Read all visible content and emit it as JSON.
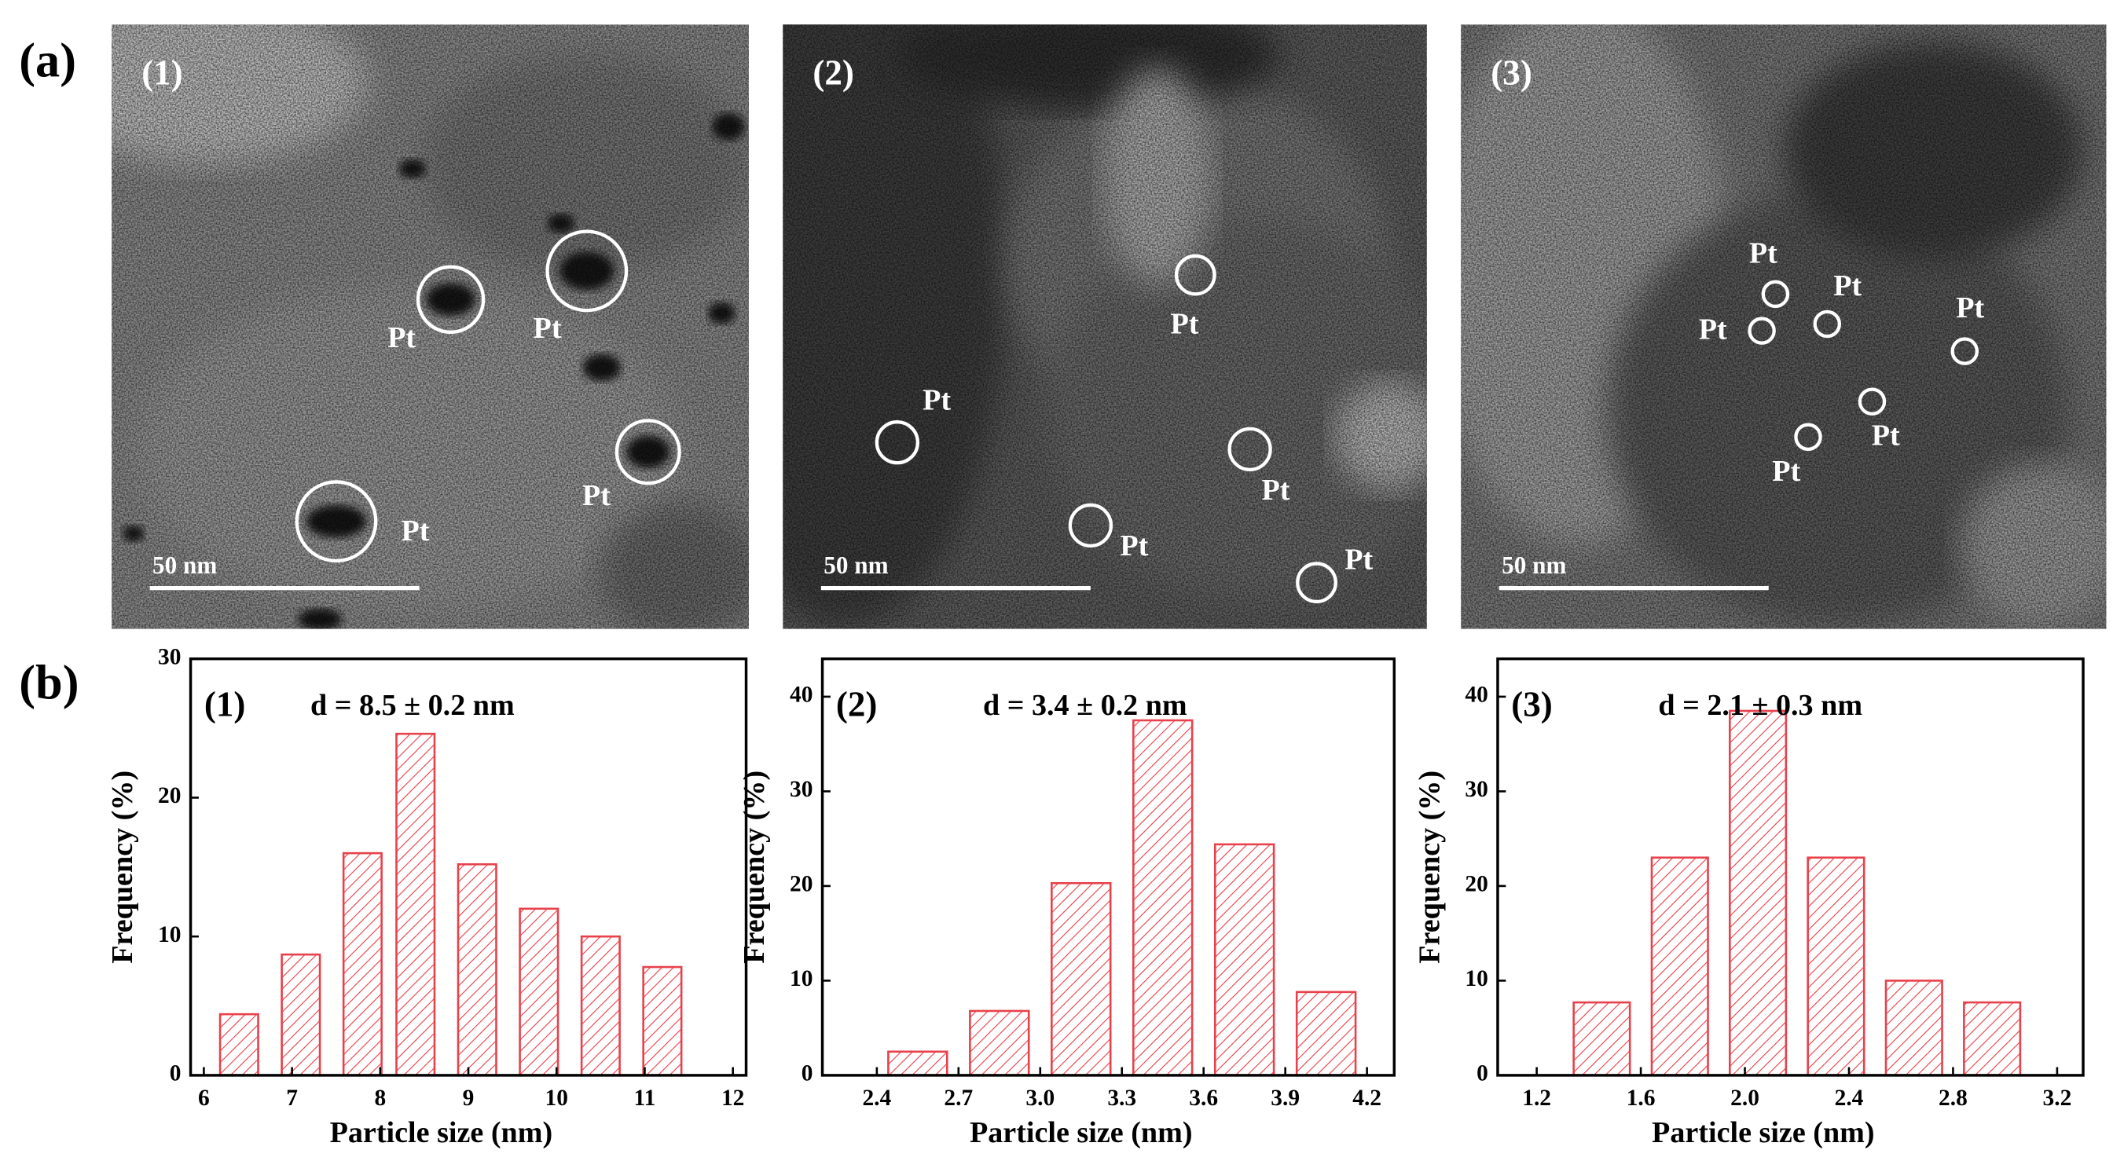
{
  "panel_labels": [
    "(a)",
    "(b)"
  ],
  "images": [
    {
      "label": "(1)",
      "scale_bar": "50 nm",
      "annotations": [
        "Pt",
        "Pt",
        "Pt",
        "Pt"
      ]
    },
    {
      "label": "(2)",
      "scale_bar": "50 nm",
      "annotations": [
        "Pt",
        "Pt",
        "Pt",
        "Pt",
        "Pt"
      ]
    },
    {
      "label": "(3)",
      "scale_bar": "50 nm",
      "annotations": [
        "Pt",
        "Pt",
        "Pt",
        "Pt",
        "Pt",
        "Pt"
      ]
    }
  ],
  "chart_data": [
    {
      "type": "bar",
      "label": "(1)",
      "annotation": "d = 8.5 ± 0.2 nm",
      "xlabel": "Particle size (nm)",
      "ylabel": "Frequency (%)",
      "color": "#e8414b",
      "x": [
        6.4,
        7.1,
        7.8,
        8.4,
        9.1,
        9.8,
        10.5,
        11.2
      ],
      "values": [
        4.4,
        8.7,
        16,
        24.6,
        15.2,
        12,
        10,
        7.8
      ],
      "xlim": [
        5.85,
        12.15
      ],
      "xticks": [
        6,
        7,
        8,
        9,
        10,
        11,
        12
      ],
      "ylim": [
        0,
        30
      ],
      "yticks": [
        0,
        10,
        20,
        30
      ]
    },
    {
      "type": "bar",
      "label": "(2)",
      "annotation": "d = 3.4 ± 0.2 nm",
      "xlabel": "Particle size (nm)",
      "ylabel": "Frequency (%)",
      "color": "#e8414b",
      "x": [
        2.55,
        2.85,
        3.15,
        3.45,
        3.75,
        4.05
      ],
      "values": [
        2.5,
        6.8,
        20.3,
        37.5,
        24.4,
        8.8
      ],
      "xlim": [
        2.2,
        4.3
      ],
      "xticks": [
        2.4,
        2.7,
        {
          "value": 3,
          "label": "3.0"
        },
        3.3,
        3.6,
        3.9,
        4.2
      ],
      "ylim": [
        0,
        44
      ],
      "yticks": [
        0,
        10,
        20,
        30,
        40
      ]
    },
    {
      "type": "bar",
      "label": "(3)",
      "annotation": "d = 2.1 ± 0.3 nm",
      "xlabel": "Particle size (nm)",
      "ylabel": "Frequency (%)",
      "color": "#e8414b",
      "x": [
        1.45,
        1.75,
        2.05,
        2.35,
        2.65,
        2.95
      ],
      "values": [
        7.7,
        23,
        38.5,
        23,
        10,
        7.7
      ],
      "xlim": [
        1.05,
        3.3
      ],
      "xticks": [
        1.2,
        1.6,
        {
          "value": 2,
          "label": "2.0"
        },
        2.4,
        2.8,
        3.2
      ],
      "ylim": [
        0,
        44
      ],
      "yticks": [
        0,
        10,
        20,
        30,
        40
      ]
    }
  ]
}
